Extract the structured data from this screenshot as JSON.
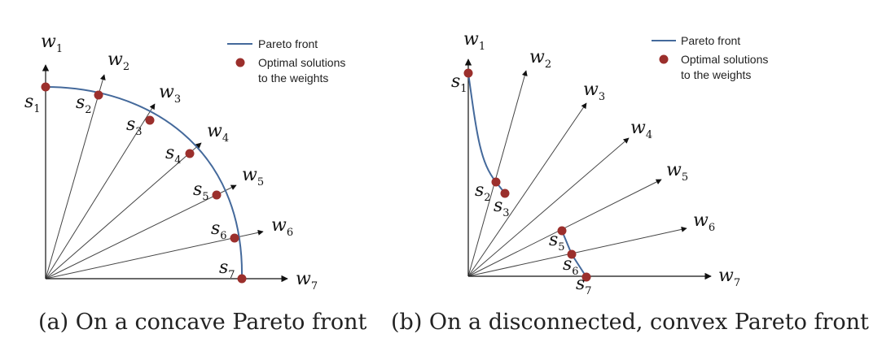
{
  "panels": [
    {
      "id": "a",
      "caption": "(a) On a concave Pareto front",
      "legend": {
        "line_label": "Pareto front",
        "dot_label_line1": "Optimal solutions",
        "dot_label_line2": "to the weights"
      },
      "axis_x": {
        "symbol": "w",
        "sub": "7"
      },
      "axis_y": {
        "symbol": "w",
        "sub": "1"
      },
      "weights": [
        {
          "symbol": "w",
          "sub": "2"
        },
        {
          "symbol": "w",
          "sub": "3"
        },
        {
          "symbol": "w",
          "sub": "4"
        },
        {
          "symbol": "w",
          "sub": "5"
        },
        {
          "symbol": "w",
          "sub": "6"
        }
      ],
      "solutions": [
        {
          "symbol": "s",
          "sub": "1"
        },
        {
          "symbol": "s",
          "sub": "2"
        },
        {
          "symbol": "s",
          "sub": "3"
        },
        {
          "symbol": "s",
          "sub": "4"
        },
        {
          "symbol": "s",
          "sub": "5"
        },
        {
          "symbol": "s",
          "sub": "6"
        },
        {
          "symbol": "s",
          "sub": "7"
        }
      ]
    },
    {
      "id": "b",
      "caption": "(b) On a disconnected, convex Pareto front",
      "legend": {
        "line_label": "Pareto front",
        "dot_label_line1": "Optimal solutions",
        "dot_label_line2": "to the weights"
      },
      "axis_x": {
        "symbol": "w",
        "sub": "7"
      },
      "axis_y": {
        "symbol": "w",
        "sub": "1"
      },
      "weights": [
        {
          "symbol": "w",
          "sub": "2"
        },
        {
          "symbol": "w",
          "sub": "3"
        },
        {
          "symbol": "w",
          "sub": "4"
        },
        {
          "symbol": "w",
          "sub": "5"
        },
        {
          "symbol": "w",
          "sub": "6"
        }
      ],
      "solutions": [
        {
          "symbol": "s",
          "sub": "1"
        },
        {
          "symbol": "s",
          "sub": "2"
        },
        {
          "symbol": "s",
          "sub": "3"
        },
        {
          "symbol": "s",
          "sub": "5"
        },
        {
          "symbol": "s",
          "sub": "6"
        },
        {
          "symbol": "s",
          "sub": "7"
        }
      ]
    }
  ],
  "colors": {
    "front": "#44699b",
    "dot": "#9b2f2c",
    "axis": "#111111",
    "weight_line": "#444444"
  }
}
